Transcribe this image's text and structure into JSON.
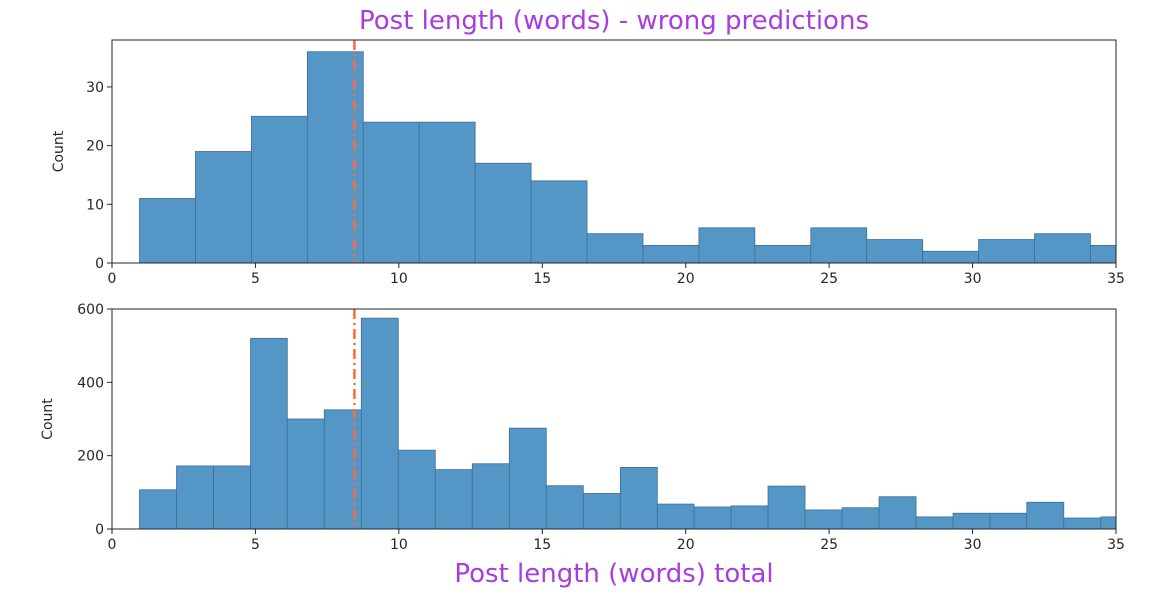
{
  "colors": {
    "bar_fill": "#5496c6",
    "bar_edge": "#3f6f95",
    "mean_line": "#ff6a3d",
    "title": "#a83ce0",
    "axis": "#262626"
  },
  "chart_data": [
    {
      "type": "bar",
      "title": "Post length (words) - wrong predictions",
      "xlabel": "",
      "ylabel": "Count",
      "xlim": [
        0,
        35
      ],
      "ylim": [
        0,
        38
      ],
      "xticks": [
        0,
        5,
        10,
        15,
        20,
        25,
        30,
        35
      ],
      "yticks": [
        0,
        10,
        20,
        30
      ],
      "bin_edges": [
        0.96,
        2.91,
        4.86,
        6.81,
        8.76,
        10.71,
        12.66,
        14.61,
        16.56,
        18.51,
        20.46,
        22.41,
        24.36,
        26.31,
        28.26,
        30.21,
        32.16,
        34.11,
        35.0
      ],
      "values": [
        11,
        19,
        25,
        36,
        24,
        24,
        17,
        14,
        5,
        3,
        6,
        3,
        6,
        4,
        2,
        4,
        5,
        3
      ],
      "mean_line_x": 8.45,
      "grid": false,
      "legend": "none"
    },
    {
      "type": "bar",
      "title": "Post length (words) total",
      "xlabel": "",
      "ylabel": "Count",
      "xlim": [
        0,
        35
      ],
      "ylim": [
        0,
        600
      ],
      "xticks": [
        0,
        5,
        10,
        15,
        20,
        25,
        30,
        35
      ],
      "yticks": [
        0,
        200,
        400,
        600
      ],
      "bin_edges": [
        0.96,
        2.25,
        3.54,
        4.83,
        6.11,
        7.4,
        8.69,
        9.98,
        11.27,
        12.56,
        13.85,
        15.14,
        16.43,
        17.72,
        19.01,
        20.29,
        21.58,
        22.87,
        24.16,
        25.45,
        26.74,
        28.03,
        29.32,
        30.61,
        31.89,
        33.18,
        34.47,
        35.0
      ],
      "values": [
        107,
        172,
        172,
        520,
        300,
        325,
        575,
        215,
        162,
        178,
        275,
        118,
        97,
        168,
        68,
        60,
        63,
        117,
        52,
        58,
        88,
        33,
        43,
        43,
        73,
        30,
        33
      ],
      "mean_line_x": 8.45,
      "grid": false,
      "legend": "none"
    }
  ]
}
